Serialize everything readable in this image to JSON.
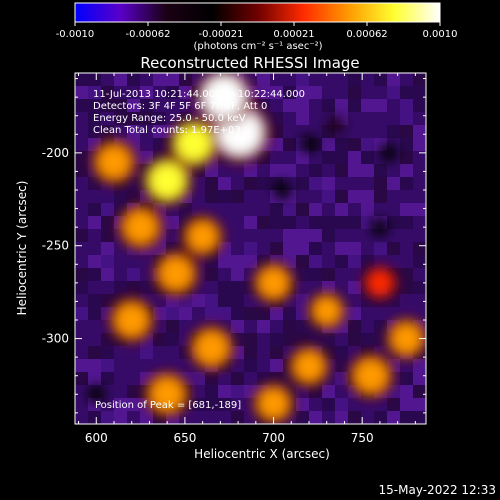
{
  "colorbar": {
    "ticks": [
      "-0.0010",
      "-0.00062",
      "-0.00021",
      "0.00021",
      "0.00062",
      "0.0010"
    ],
    "units_label": "(photons cm⁻² s⁻¹ asec⁻²)",
    "colors": [
      "#0000ff",
      "#5a00c8",
      "#1a0014",
      "#000000",
      "#6e0000",
      "#ff2a00",
      "#ff9a00",
      "#ffff30",
      "#ffffff"
    ]
  },
  "chart_data": {
    "type": "heatmap",
    "title": "Reconstructed RHESSI Image",
    "xlabel": "Heliocentric X (arcsec)",
    "ylabel": "Heliocentric Y (arcsec)",
    "xlim": [
      588,
      786
    ],
    "ylim": [
      -346,
      -157
    ],
    "xticks": [
      600,
      650,
      700,
      750
    ],
    "yticks": [
      -200,
      -250,
      -300
    ],
    "zlim": [
      -0.001,
      0.001
    ],
    "annotations": [
      "11-Jul-2013 10:21:44.000 to 10:22:44.000",
      "Detectors: 3F 4F 5F 6F 7F 8F, Att 0",
      "Energy Range: 25.0 - 50.0 keV",
      "Clean     Total counts: 1.97E+03"
    ],
    "peak_label": "Position of Peak = [681,-189]",
    "peak": [
      681,
      -189
    ],
    "hot_regions": [
      {
        "x": 681,
        "y": -189,
        "z": 0.001
      },
      {
        "x": 672,
        "y": -170,
        "z": 0.0009
      },
      {
        "x": 655,
        "y": -195,
        "z": 0.0007
      },
      {
        "x": 640,
        "y": -215,
        "z": 0.0007
      },
      {
        "x": 610,
        "y": -205,
        "z": 0.0006
      },
      {
        "x": 625,
        "y": -240,
        "z": 0.0006
      },
      {
        "x": 660,
        "y": -245,
        "z": 0.0005
      },
      {
        "x": 645,
        "y": -265,
        "z": 0.0006
      },
      {
        "x": 700,
        "y": -270,
        "z": 0.0005
      },
      {
        "x": 620,
        "y": -290,
        "z": 0.0006
      },
      {
        "x": 665,
        "y": -305,
        "z": 0.0006
      },
      {
        "x": 640,
        "y": -330,
        "z": 0.0006
      },
      {
        "x": 720,
        "y": -315,
        "z": 0.0005
      },
      {
        "x": 755,
        "y": -320,
        "z": 0.0006
      },
      {
        "x": 775,
        "y": -300,
        "z": 0.0005
      },
      {
        "x": 730,
        "y": -285,
        "z": 0.0004
      },
      {
        "x": 700,
        "y": -335,
        "z": 0.0005
      },
      {
        "x": 760,
        "y": -270,
        "z": 0.0003
      }
    ],
    "cold_regions": [
      {
        "x": 735,
        "y": -185,
        "z": -0.0004
      },
      {
        "x": 765,
        "y": -200,
        "z": -0.0003
      },
      {
        "x": 705,
        "y": -220,
        "z": -0.0003
      },
      {
        "x": 760,
        "y": -240,
        "z": -0.0003
      },
      {
        "x": 600,
        "y": -330,
        "z": -0.0003
      },
      {
        "x": 720,
        "y": -195,
        "z": -0.0002
      }
    ]
  },
  "timestamp": "15-May-2022 12:33"
}
